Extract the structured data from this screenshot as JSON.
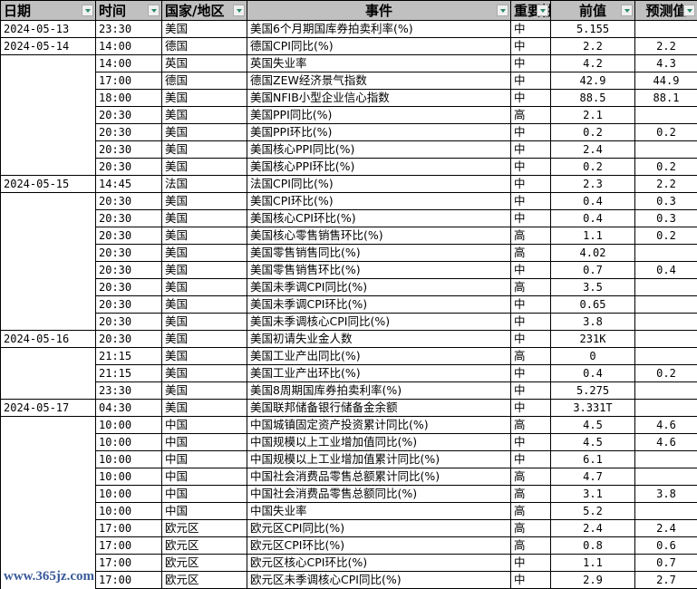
{
  "headers": [
    "日期",
    "时间",
    "国家/地区",
    "事件",
    "重要性",
    "前值",
    "预测值"
  ],
  "rows": [
    [
      "2024-05-13",
      "23:30",
      "美国",
      "美国6个月期国库券拍卖利率(%)",
      "中",
      "5.155",
      ""
    ],
    [
      "2024-05-14",
      "14:00",
      "德国",
      "德国CPI同比(%)",
      "中",
      "2.2",
      "2.2"
    ],
    [
      "",
      "14:00",
      "英国",
      "英国失业率",
      "中",
      "4.2",
      "4.3"
    ],
    [
      "",
      "17:00",
      "德国",
      "德国ZEW经济景气指数",
      "中",
      "42.9",
      "44.9"
    ],
    [
      "",
      "18:00",
      "美国",
      "美国NFIB小型企业信心指数",
      "中",
      "88.5",
      "88.1"
    ],
    [
      "",
      "20:30",
      "美国",
      "美国PPI同比(%)",
      "高",
      "2.1",
      ""
    ],
    [
      "",
      "20:30",
      "美国",
      "美国PPI环比(%)",
      "中",
      "0.2",
      "0.2"
    ],
    [
      "",
      "20:30",
      "美国",
      "美国核心PPI同比(%)",
      "中",
      "2.4",
      ""
    ],
    [
      "",
      "20:30",
      "美国",
      "美国核心PPI环比(%)",
      "中",
      "0.2",
      "0.2"
    ],
    [
      "2024-05-15",
      "14:45",
      "法国",
      "法国CPI同比(%)",
      "中",
      "2.3",
      "2.2"
    ],
    [
      "",
      "20:30",
      "美国",
      "美国CPI环比(%)",
      "中",
      "0.4",
      "0.3"
    ],
    [
      "",
      "20:30",
      "美国",
      "美国核心CPI环比(%)",
      "中",
      "0.4",
      "0.3"
    ],
    [
      "",
      "20:30",
      "美国",
      "美国核心零售销售环比(%)",
      "高",
      "1.1",
      "0.2"
    ],
    [
      "",
      "20:30",
      "美国",
      "美国零售销售同比(%)",
      "高",
      "4.02",
      ""
    ],
    [
      "",
      "20:30",
      "美国",
      "美国零售销售环比(%)",
      "中",
      "0.7",
      "0.4"
    ],
    [
      "",
      "20:30",
      "美国",
      "美国未季调CPI同比(%)",
      "高",
      "3.5",
      ""
    ],
    [
      "",
      "20:30",
      "美国",
      "美国未季调CPI环比(%)",
      "中",
      "0.65",
      ""
    ],
    [
      "",
      "20:30",
      "美国",
      "美国未季调核心CPI同比(%)",
      "中",
      "3.8",
      ""
    ],
    [
      "2024-05-16",
      "20:30",
      "美国",
      "美国初请失业金人数",
      "中",
      "231K",
      ""
    ],
    [
      "",
      "21:15",
      "美国",
      "美国工业产出同比(%)",
      "高",
      "0",
      ""
    ],
    [
      "",
      "21:15",
      "美国",
      "美国工业产出环比(%)",
      "中",
      "0.4",
      "0.2"
    ],
    [
      "",
      "23:30",
      "美国",
      "美国8周期国库券拍卖利率(%)",
      "中",
      "5.275",
      ""
    ],
    [
      "2024-05-17",
      "04:30",
      "美国",
      "美国联邦储备银行储备金余额",
      "中",
      "3.331T",
      ""
    ],
    [
      "",
      "10:00",
      "中国",
      "中国城镇固定资产投资累计同比(%)",
      "高",
      "4.5",
      "4.6"
    ],
    [
      "",
      "10:00",
      "中国",
      "中国规模以上工业增加值同比(%)",
      "中",
      "4.5",
      "4.6"
    ],
    [
      "",
      "10:00",
      "中国",
      "中国规模以上工业增加值累计同比(%)",
      "中",
      "6.1",
      ""
    ],
    [
      "",
      "10:00",
      "中国",
      "中国社会消费品零售总额累计同比(%)",
      "高",
      "4.7",
      ""
    ],
    [
      "",
      "10:00",
      "中国",
      "中国社会消费品零售总额同比(%)",
      "高",
      "3.1",
      "3.8"
    ],
    [
      "",
      "10:00",
      "中国",
      "中国失业率",
      "高",
      "5.2",
      ""
    ],
    [
      "",
      "17:00",
      "欧元区",
      "欧元区CPI同比(%)",
      "高",
      "2.4",
      "2.4"
    ],
    [
      "",
      "17:00",
      "欧元区",
      "欧元区CPI环比(%)",
      "高",
      "0.8",
      "0.6"
    ],
    [
      "",
      "17:00",
      "欧元区",
      "欧元区核心CPI环比(%)",
      "中",
      "1.1",
      "0.7"
    ],
    [
      "",
      "17:00",
      "欧元区",
      "欧元区未季调核心CPI同比(%)",
      "中",
      "2.9",
      "2.7"
    ]
  ],
  "watermark": "www.365jz.com",
  "colors": {
    "header_bg": "#c0c0c0",
    "filter_arrow": "#2a8a6a",
    "watermark": "#3a5a9a"
  }
}
